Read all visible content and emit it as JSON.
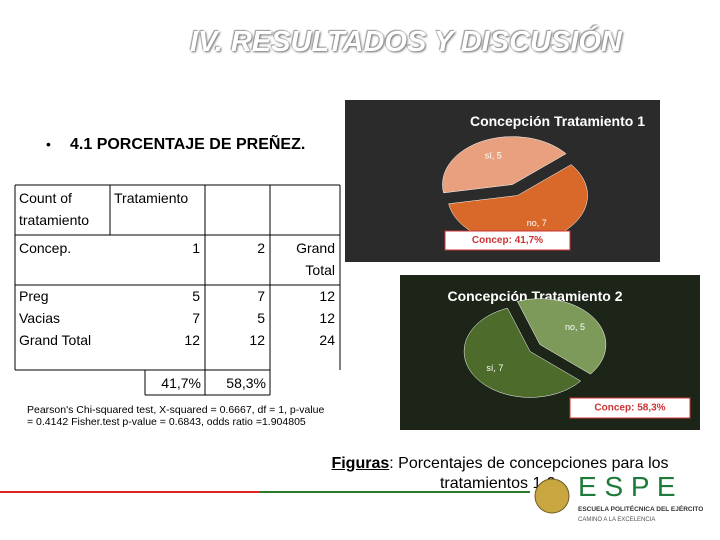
{
  "header": {
    "title": "IV. RESULTADOS Y DISCUSIÓN"
  },
  "section": {
    "bullet": "•",
    "heading": "4.1 PORCENTAJE DE PREÑEZ."
  },
  "table": {
    "corner": "Count of tratamiento",
    "column_group": "Tratamiento",
    "row_header": "Concep.",
    "columns": [
      "1",
      "2",
      "Grand Total"
    ],
    "rows": [
      {
        "label": "Preg",
        "cells": [
          5,
          7,
          12
        ]
      },
      {
        "label": "Vacias",
        "cells": [
          7,
          5,
          12
        ]
      },
      {
        "label": "Grand Total",
        "cells": [
          12,
          12,
          24
        ]
      }
    ],
    "percentages": [
      "41,7%",
      "58,3%"
    ]
  },
  "stats": "Pearson's Chi-squared test, X-squared = 0.6667, df = 1, p-value = 0.4142 Fisher.test p-value = 0.6843, odds ratio =1.904805",
  "caption": {
    "label": "Figuras",
    "text": ": Porcentajes de concepciones para los tratamientos 1-2."
  },
  "logo": {
    "name": "E S P E",
    "school": "ESCUELA POLITÉCNICA DEL EJÉRCITO",
    "motto": "CAMINO A LA EXCELENCIA"
  },
  "chart_data": [
    {
      "type": "pie",
      "title": "Concepción Tratamiento 1",
      "categories": [
        "sí",
        "no"
      ],
      "values": [
        5,
        7
      ],
      "value_labels": [
        "sí, 5",
        "no, 7"
      ],
      "colors": [
        "#e8a07e",
        "#d9692a"
      ],
      "annotation": "Concep: 41,7%"
    },
    {
      "type": "pie",
      "title": "Concepción Tratamiento 2",
      "categories": [
        "no",
        "sí"
      ],
      "values": [
        5,
        7
      ],
      "value_labels": [
        "no, 5",
        "sí, 7"
      ],
      "colors": [
        "#7d9a5a",
        "#4d6b2a"
      ],
      "annotation": "Concep: 58,3%"
    }
  ]
}
